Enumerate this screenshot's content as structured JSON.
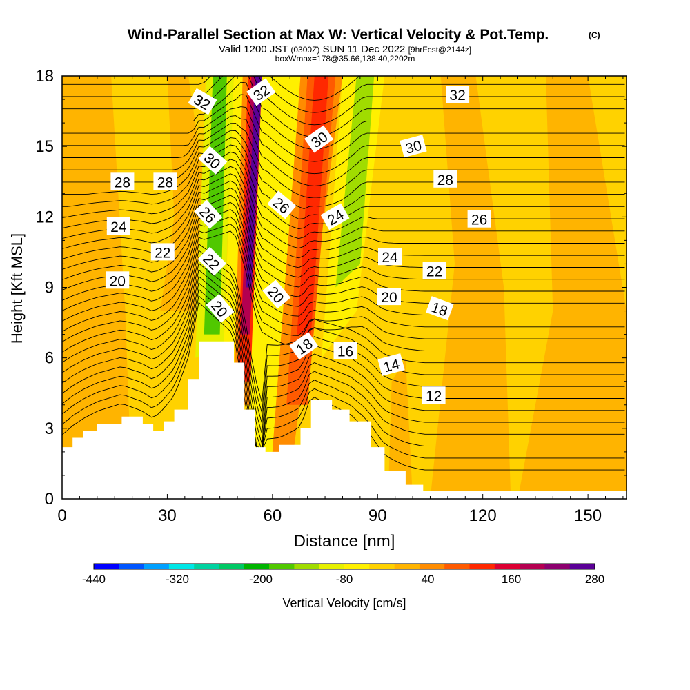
{
  "header": {
    "title": "Wind-Parallel Section at Max W: Vertical Velocity & Pot.Temp.",
    "copyright": "(C)",
    "valid_prefix": "Valid 1200 JST",
    "valid_utc": "(0300Z)",
    "valid_date": "SUN 11 Dec 2022",
    "forecast": "[9hrFcst@2144z]",
    "box_info": "boxWmax=178@35.66,138.40,2202m"
  },
  "chart_data": {
    "type": "contour-section",
    "xlabel": "Distance [nm]",
    "ylabel": "Height [Kft MSL]",
    "xlim": [
      0,
      161
    ],
    "ylim": [
      0,
      18
    ],
    "x_ticks": [
      0,
      30,
      60,
      90,
      120,
      150
    ],
    "y_ticks": [
      0,
      3,
      6,
      9,
      12,
      15,
      18
    ],
    "colorbar": {
      "label": "Vertical Velocity [cm/s]",
      "tick_labels": [
        "-440",
        "-320",
        "-200",
        "-80",
        "40",
        "160",
        "280"
      ],
      "tick_values": [
        -440,
        -320,
        -200,
        -80,
        40,
        160,
        280
      ],
      "colors": [
        "#0000ff",
        "#0055ff",
        "#00a0ff",
        "#00e6e6",
        "#00d2a0",
        "#00c864",
        "#00b400",
        "#50c800",
        "#a0dc00",
        "#e6f000",
        "#fff000",
        "#ffd200",
        "#ffb400",
        "#ff8c00",
        "#ff5a00",
        "#ff2800",
        "#dc0032",
        "#b40050",
        "#8c006e",
        "#5a0096"
      ]
    },
    "terrain_kft": [
      [
        0,
        2.2
      ],
      [
        3,
        2.6
      ],
      [
        6,
        2.9
      ],
      [
        10,
        3.2
      ],
      [
        17,
        3.5
      ],
      [
        23,
        3.2
      ],
      [
        26,
        2.9
      ],
      [
        29,
        3.3
      ],
      [
        32,
        3.8
      ],
      [
        36,
        5.1
      ],
      [
        39,
        6.7
      ],
      [
        49,
        5.8
      ],
      [
        52,
        3.8
      ],
      [
        55,
        2.2
      ],
      [
        58,
        2.0
      ],
      [
        62,
        2.3
      ],
      [
        68,
        3.0
      ],
      [
        71,
        4.2
      ],
      [
        77,
        3.8
      ],
      [
        82,
        3.3
      ],
      [
        88,
        2.2
      ],
      [
        92,
        1.2
      ],
      [
        98,
        0.6
      ],
      [
        103,
        0.35
      ],
      [
        161,
        0.35
      ]
    ],
    "isentrope_labels": [
      {
        "text": "32",
        "x": 40.0,
        "y": 16.9,
        "rot": 30
      },
      {
        "text": "32",
        "x": 56.8,
        "y": 17.3,
        "rot": -35
      },
      {
        "text": "32",
        "x": 112.8,
        "y": 17.2,
        "rot": 0
      },
      {
        "text": "30",
        "x": 42.9,
        "y": 14.4,
        "rot": 42
      },
      {
        "text": "30",
        "x": 73.3,
        "y": 15.3,
        "rot": -35
      },
      {
        "text": "30",
        "x": 100.2,
        "y": 15.0,
        "rot": -15
      },
      {
        "text": "28",
        "x": 17.2,
        "y": 13.5,
        "rot": 0
      },
      {
        "text": "28",
        "x": 29.4,
        "y": 13.5,
        "rot": 0
      },
      {
        "text": "28",
        "x": 109.3,
        "y": 13.6,
        "rot": 0
      },
      {
        "text": "26",
        "x": 41.6,
        "y": 12.1,
        "rot": 48
      },
      {
        "text": "26",
        "x": 62.6,
        "y": 12.5,
        "rot": 40
      },
      {
        "text": "26",
        "x": 119.0,
        "y": 11.9,
        "rot": 0
      },
      {
        "text": "24",
        "x": 16.1,
        "y": 11.6,
        "rot": 0
      },
      {
        "text": "24",
        "x": 77.9,
        "y": 12.0,
        "rot": -30
      },
      {
        "text": "24",
        "x": 93.5,
        "y": 10.3,
        "rot": 0
      },
      {
        "text": "22",
        "x": 28.7,
        "y": 10.5,
        "rot": 0
      },
      {
        "text": "22",
        "x": 42.7,
        "y": 10.1,
        "rot": 45
      },
      {
        "text": "22",
        "x": 106.2,
        "y": 9.7,
        "rot": 0
      },
      {
        "text": "20",
        "x": 15.8,
        "y": 9.3,
        "rot": 0
      },
      {
        "text": "20",
        "x": 45.0,
        "y": 8.1,
        "rot": 50
      },
      {
        "text": "20",
        "x": 61.1,
        "y": 8.7,
        "rot": 50
      },
      {
        "text": "20",
        "x": 93.3,
        "y": 8.6,
        "rot": 0
      },
      {
        "text": "18",
        "x": 69.0,
        "y": 6.5,
        "rot": -35
      },
      {
        "text": "18",
        "x": 107.7,
        "y": 8.1,
        "rot": 20
      },
      {
        "text": "16",
        "x": 80.8,
        "y": 6.3,
        "rot": 0
      },
      {
        "text": "14",
        "x": 93.9,
        "y": 5.7,
        "rot": -15
      },
      {
        "text": "12",
        "x": 106.0,
        "y": 4.4,
        "rot": 0
      }
    ]
  }
}
